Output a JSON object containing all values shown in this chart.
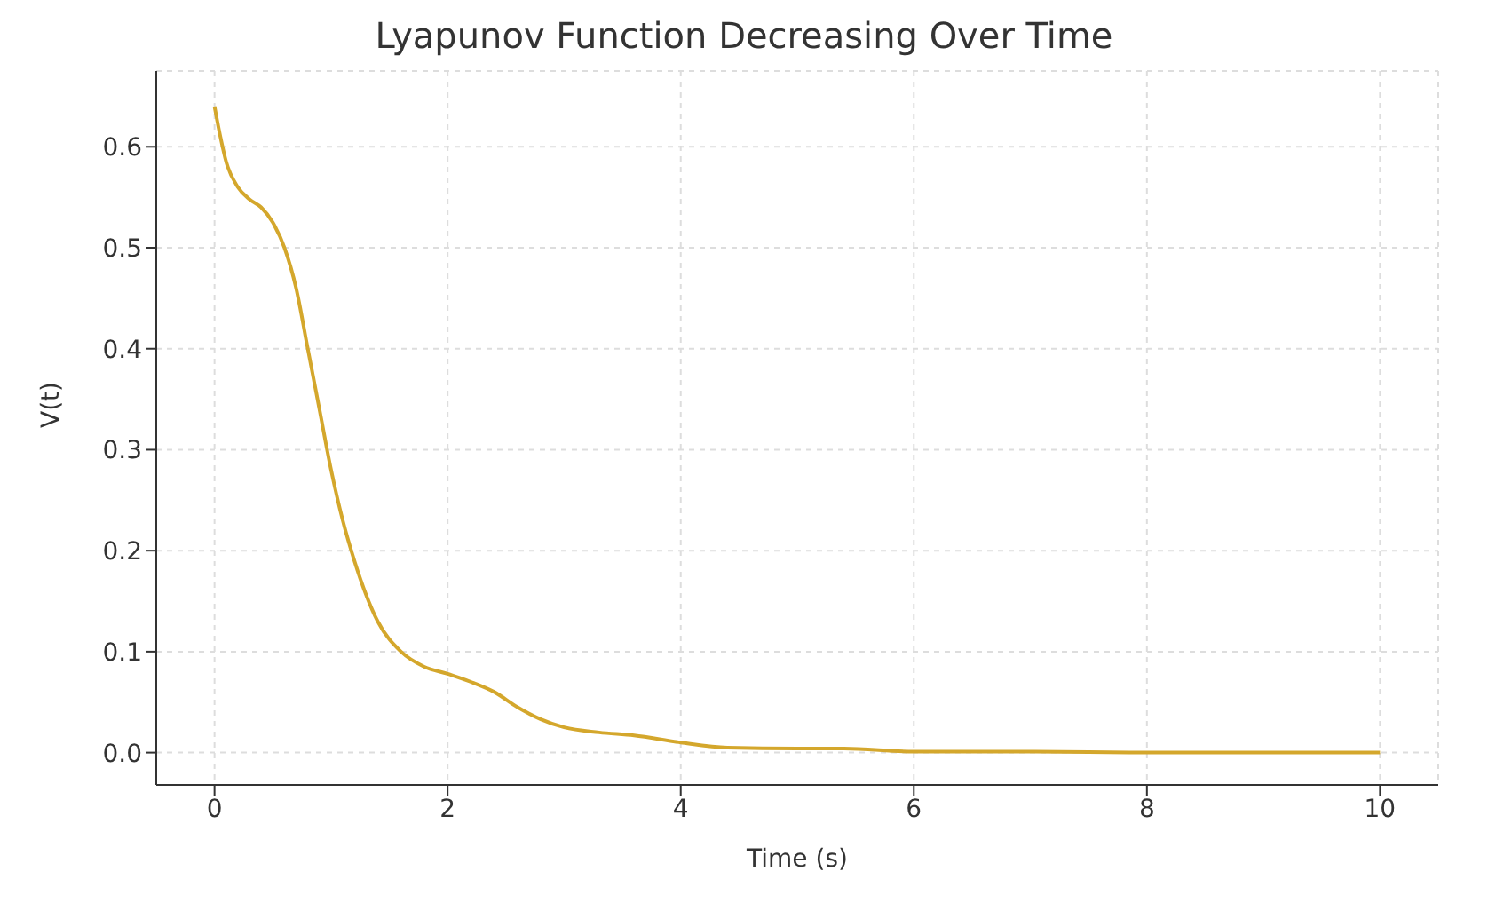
{
  "chart_data": {
    "type": "line",
    "title": "Lyapunov Function Decreasing Over Time",
    "xlabel": "Time (s)",
    "ylabel": "V(t)",
    "x": [
      0,
      0.05,
      0.1,
      0.2,
      0.3,
      0.4,
      0.5,
      0.6,
      0.7,
      0.8,
      0.9,
      1.0,
      1.1,
      1.2,
      1.4,
      1.6,
      1.8,
      2.0,
      2.2,
      2.4,
      2.6,
      2.8,
      3.0,
      3.3,
      3.6,
      4.0,
      4.4,
      5.0,
      5.4,
      6.0,
      7.0,
      8.0,
      9.0,
      10.0
    ],
    "series": [
      {
        "color": "#d4a72c",
        "values": [
          0.64,
          0.61,
          0.585,
          0.56,
          0.548,
          0.54,
          0.525,
          0.5,
          0.46,
          0.4,
          0.34,
          0.28,
          0.23,
          0.19,
          0.13,
          0.1,
          0.085,
          0.078,
          0.07,
          0.06,
          0.045,
          0.033,
          0.025,
          0.02,
          0.017,
          0.01,
          0.005,
          0.004,
          0.004,
          0.001,
          0.001,
          0.0,
          0.0,
          0.0
        ]
      }
    ],
    "xlim": [
      -0.5,
      10.5
    ],
    "xticks": [
      0,
      2,
      4,
      6,
      8,
      10
    ],
    "ylim": [
      -0.032,
      0.675
    ],
    "yticks": [
      {
        "value": 0,
        "label": "0.0"
      },
      0.1,
      0.2,
      0.3,
      0.4,
      0.5,
      0.6
    ],
    "grid": true,
    "line_style": "solid"
  }
}
